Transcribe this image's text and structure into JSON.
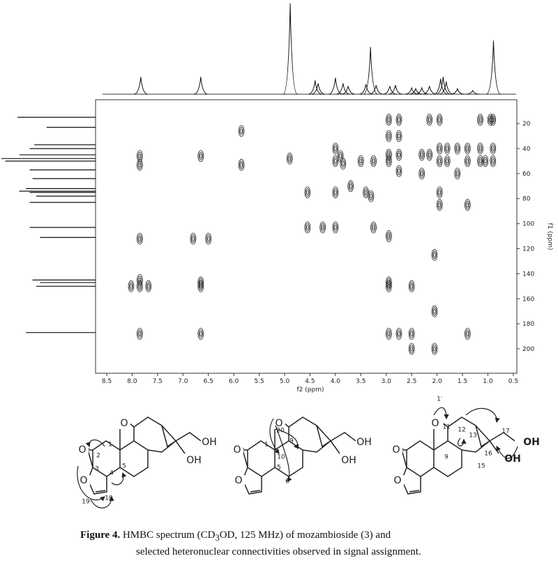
{
  "figure": {
    "spectrum": {
      "x_label": "f2 (ppm)",
      "y_label": "f1 (ppm)",
      "xlim": [
        8.72,
        0.43
      ],
      "ylim": [
        1,
        219.5
      ],
      "xticks": [
        8.5,
        {
          "value": 8,
          "label": "8.0"
        },
        7.5,
        {
          "value": 7,
          "label": "7.0"
        },
        6.5,
        {
          "value": 6,
          "label": "6.0"
        },
        5.5,
        {
          "value": 5,
          "label": "5.0"
        },
        4.5,
        {
          "value": 4,
          "label": "4.0"
        },
        3.5,
        {
          "value": 3,
          "label": "3.0"
        },
        2.5,
        {
          "value": 2,
          "label": "2.0"
        },
        1.5,
        {
          "value": 1,
          "label": "1.0"
        },
        0.5
      ],
      "yticks": [
        20,
        40,
        60,
        80,
        100,
        120,
        140,
        160,
        180,
        200
      ],
      "top_trace": {
        "x": [
          7.83,
          6.65,
          4.89,
          4.4,
          4.34,
          4.0,
          3.85,
          3.75,
          3.4,
          3.31,
          3.2,
          2.93,
          2.82,
          2.5,
          2.42,
          2.3,
          2.15,
          1.93,
          1.88,
          1.82,
          1.6,
          1.3,
          0.89
        ],
        "intensity": [
          19,
          19,
          100,
          15,
          12,
          18,
          12,
          9,
          11,
          52,
          10,
          9,
          10,
          7,
          6,
          7,
          9,
          17,
          19,
          14,
          6,
          4,
          59
        ]
      },
      "left_trace": {
        "y": [
          15,
          23,
          37,
          40,
          45,
          48,
          50,
          57,
          64,
          72,
          74,
          75,
          78,
          83,
          103,
          111,
          145,
          147,
          150,
          187
        ],
        "intensity": [
          83,
          52,
          65,
          70,
          81,
          100,
          96,
          70,
          67,
          74,
          81,
          70,
          63,
          70,
          70,
          59,
          67,
          59,
          63,
          74
        ]
      },
      "cross_peaks": {
        "x": [
          7.85,
          7.85,
          7.85,
          7.85,
          7.85,
          7.85,
          8.02,
          7.68,
          6.8,
          6.5,
          6.65,
          6.65,
          6.65,
          6.65,
          5.85,
          5.85,
          4.9,
          4.55,
          4.55,
          4.25,
          4.0,
          4.0,
          4.0,
          4.0,
          3.9,
          3.85,
          3.7,
          3.5,
          3.4,
          3.25,
          3.25,
          3.3,
          2.95,
          2.95,
          2.95,
          2.95,
          2.95,
          2.95,
          2.95,
          2.95,
          2.75,
          2.75,
          2.75,
          2.75,
          2.75,
          2.5,
          2.5,
          2.5,
          2.3,
          2.3,
          2.15,
          2.15,
          2.05,
          2.05,
          2.05,
          1.95,
          1.95,
          1.95,
          1.95,
          1.95,
          1.8,
          1.8,
          1.6,
          1.6,
          1.4,
          1.4,
          1.4,
          1.4,
          1.15,
          1.15,
          1.15,
          0.95,
          0.9,
          0.9,
          0.9,
          1.05
        ],
        "y": [
          46,
          53,
          112,
          145,
          150,
          188,
          150,
          150,
          112,
          112,
          46,
          147,
          150,
          188,
          26,
          53,
          48,
          75,
          103,
          103,
          40,
          50,
          75,
          103,
          46,
          52,
          70,
          50,
          75,
          50,
          103,
          78,
          17,
          30,
          45,
          50,
          110,
          147,
          150,
          188,
          17,
          30,
          45,
          58,
          188,
          188,
          200,
          150,
          45,
          60,
          17,
          45,
          125,
          170,
          200,
          17,
          40,
          50,
          75,
          85,
          40,
          50,
          40,
          60,
          40,
          50,
          85,
          188,
          17,
          40,
          50,
          17,
          17,
          40,
          50,
          50
        ]
      }
    },
    "structures": [
      {
        "labels": [
          "O",
          "O",
          "O",
          "1",
          "2",
          "3",
          "4",
          "5",
          "18",
          "19",
          "OH",
          "OH"
        ]
      },
      {
        "labels": [
          "O",
          "O",
          "O",
          "1",
          "20",
          "10",
          "9",
          "5",
          "6",
          "OH",
          "OH"
        ]
      },
      {
        "labels": [
          "O",
          "O",
          "O",
          "1′",
          "11",
          "12",
          "13",
          "9",
          "15",
          "16",
          "17",
          "OH",
          "OH"
        ]
      }
    ],
    "caption": {
      "label": "Figure 4.",
      "line1_parts": [
        "HMBC spectrum (CD",
        "3",
        "OD, 125 MHz) of mozambioside (3) and"
      ],
      "line2": "selected heteronuclear connectivities observed in signal assignment."
    }
  }
}
